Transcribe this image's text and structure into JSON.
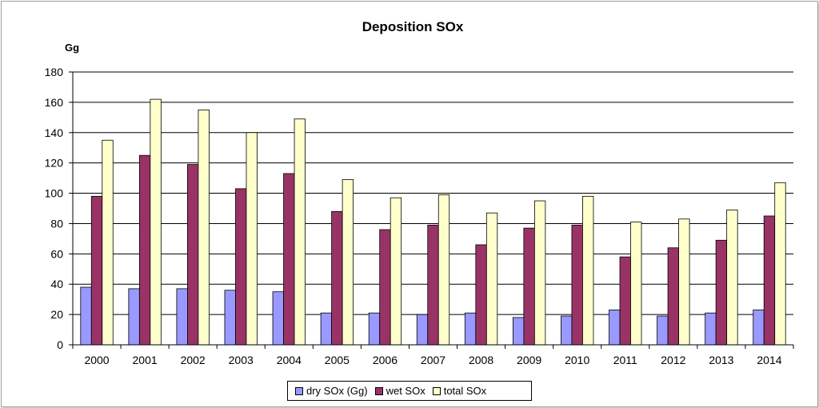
{
  "chart_data": {
    "type": "bar",
    "title": "Deposition SOx",
    "ylabel": "Gg",
    "xlabel": "",
    "ylim": [
      0,
      180
    ],
    "yticks": [
      0,
      20,
      40,
      60,
      80,
      100,
      120,
      140,
      160,
      180
    ],
    "grid": true,
    "legend_position": "bottom",
    "categories": [
      "2000",
      "2001",
      "2002",
      "2003",
      "2004",
      "2005",
      "2006",
      "2007",
      "2008",
      "2009",
      "2010",
      "2011",
      "2012",
      "2013",
      "2014"
    ],
    "series": [
      {
        "name": "dry SOx (Gg)",
        "color": "#9999ff",
        "values": [
          38,
          37,
          37,
          36,
          35,
          21,
          21,
          20,
          21,
          18,
          19,
          23,
          19,
          21,
          23
        ]
      },
      {
        "name": "wet SOx",
        "color": "#993366",
        "values": [
          98,
          125,
          119,
          103,
          113,
          88,
          76,
          79,
          66,
          77,
          79,
          58,
          64,
          69,
          85
        ]
      },
      {
        "name": "total SOx",
        "color": "#ffffcc",
        "values": [
          135,
          162,
          155,
          140,
          149,
          109,
          97,
          99,
          87,
          95,
          98,
          81,
          83,
          89,
          107
        ]
      }
    ]
  }
}
